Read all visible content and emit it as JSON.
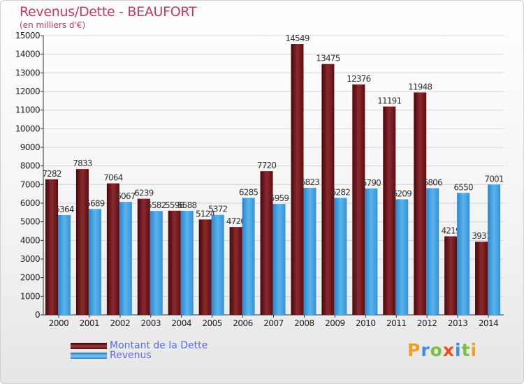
{
  "title": "Revenus/Dette - BEAUFORT",
  "subtitle": "(en milliers d'€)",
  "chart_data": {
    "type": "bar",
    "categories": [
      "2000",
      "2001",
      "2002",
      "2003",
      "2004",
      "2005",
      "2006",
      "2007",
      "2008",
      "2009",
      "2010",
      "2011",
      "2012",
      "2013",
      "2014"
    ],
    "series": [
      {
        "name": "Montant de la Dette",
        "values": [
          7282,
          7833,
          7064,
          6239,
          5596,
          5124,
          4720,
          7720,
          14549,
          13475,
          12376,
          11191,
          11948,
          4219,
          3931
        ],
        "labels": [
          "7282",
          "7833",
          "7064",
          "6239",
          "5596",
          "5124",
          "4720",
          "7720",
          "14549",
          "13475",
          "12376",
          "11191",
          "11948",
          "4219",
          "3931"
        ],
        "color": "#7a1a1e"
      },
      {
        "name": "Revenus",
        "values": [
          5364,
          5689,
          6067,
          5582,
          5588,
          5372,
          6285,
          5959,
          6823,
          6282,
          6790,
          6209,
          6806,
          6550,
          7001
        ],
        "labels": [
          "5364",
          "5689",
          "6067",
          "5582",
          "5588",
          "5372",
          "6285",
          "5959",
          "6823",
          "6282",
          "6790",
          "6209",
          "6806",
          "6550",
          "7001"
        ],
        "color": "#3a9ee0"
      }
    ],
    "yticks": [
      "0",
      "1000",
      "2000",
      "3000",
      "4000",
      "5000",
      "6000",
      "7000",
      "8000",
      "9000",
      "10000",
      "11000",
      "12000",
      "13000",
      "14000",
      "15000"
    ],
    "ylim": [
      0,
      15000
    ],
    "grid": true
  },
  "legend": {
    "items": [
      {
        "label": "Montant de la Dette",
        "color": "#6e0f14"
      },
      {
        "label": "Revenus",
        "color": "#3a9ee0"
      }
    ]
  },
  "logo": {
    "text": "Proxiti"
  }
}
